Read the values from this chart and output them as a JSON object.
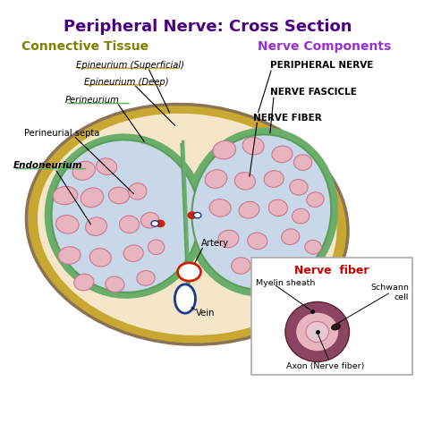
{
  "title": "Peripheral Nerve: Cross Section",
  "title_color": "#4B0082",
  "title_fontsize": 13,
  "subtitle_left": "Connective Tissue",
  "subtitle_left_color": "#808000",
  "subtitle_right": "Nerve Components",
  "subtitle_right_color": "#9932CC",
  "subtitle_fontsize": 10,
  "bg_color": "#FFFFFF",
  "outer_nerve_color": "#F5E6C8",
  "outer_nerve_edge": "#C8A832",
  "outer_nerve_edge2": "#8B7355",
  "fascicle_fill": "#C8D8E8",
  "fascicle_edge_outer": "#6BAD6B",
  "fascicle_edge_inner": "#5A9E5A",
  "nerve_fiber_fill": "#E8B4C0",
  "nerve_fiber_edge": "#C87890",
  "label_color": "#000000",
  "label_fontsize": 7.5,
  "inset_bg": "#FFFFFF",
  "inset_border": "#AAAAAA",
  "inset_title_color": "#CC0000",
  "inset_outer_fill": "#8B4560",
  "inset_myelin_fill": "#E8B4C0",
  "inset_axon_fill": "#E8C8D0",
  "inset_schwann_fill": "#2A1A1A",
  "left_fibers": [
    [
      2.0,
      6.0,
      0.28,
      0.22,
      20
    ],
    [
      2.55,
      6.1,
      0.25,
      0.2,
      -10
    ],
    [
      1.55,
      5.4,
      0.3,
      0.22,
      5
    ],
    [
      2.2,
      5.35,
      0.28,
      0.23,
      15
    ],
    [
      2.85,
      5.4,
      0.25,
      0.2,
      -5
    ],
    [
      3.3,
      5.5,
      0.22,
      0.2,
      10
    ],
    [
      1.6,
      4.7,
      0.28,
      0.22,
      -8
    ],
    [
      2.3,
      4.65,
      0.26,
      0.22,
      12
    ],
    [
      3.1,
      4.7,
      0.24,
      0.21,
      -3
    ],
    [
      3.6,
      4.8,
      0.22,
      0.19,
      8
    ],
    [
      1.65,
      3.95,
      0.27,
      0.21,
      5
    ],
    [
      2.4,
      3.9,
      0.26,
      0.22,
      -10
    ],
    [
      3.2,
      4.0,
      0.24,
      0.2,
      7
    ],
    [
      3.75,
      4.15,
      0.2,
      0.18,
      -5
    ],
    [
      2.0,
      3.3,
      0.24,
      0.2,
      10
    ],
    [
      2.75,
      3.25,
      0.23,
      0.19,
      -8
    ],
    [
      3.5,
      3.4,
      0.22,
      0.18,
      5
    ]
  ],
  "right_fibers": [
    [
      5.4,
      6.5,
      0.28,
      0.22,
      10
    ],
    [
      6.1,
      6.6,
      0.26,
      0.21,
      -8
    ],
    [
      6.8,
      6.4,
      0.25,
      0.2,
      5
    ],
    [
      7.3,
      6.2,
      0.22,
      0.19,
      -3
    ],
    [
      5.2,
      5.8,
      0.27,
      0.22,
      15
    ],
    [
      5.9,
      5.75,
      0.25,
      0.21,
      -10
    ],
    [
      6.6,
      5.8,
      0.24,
      0.2,
      8
    ],
    [
      7.2,
      5.6,
      0.22,
      0.19,
      -5
    ],
    [
      7.6,
      5.3,
      0.21,
      0.18,
      10
    ],
    [
      5.3,
      5.1,
      0.26,
      0.21,
      -5
    ],
    [
      6.0,
      5.05,
      0.25,
      0.2,
      12
    ],
    [
      6.7,
      5.1,
      0.23,
      0.2,
      -8
    ],
    [
      7.25,
      4.9,
      0.21,
      0.18,
      5
    ],
    [
      5.5,
      4.35,
      0.25,
      0.21,
      8
    ],
    [
      6.2,
      4.3,
      0.24,
      0.2,
      -6
    ],
    [
      7.0,
      4.4,
      0.22,
      0.19,
      10
    ],
    [
      7.55,
      4.15,
      0.2,
      0.17,
      -4
    ],
    [
      5.8,
      3.7,
      0.23,
      0.2,
      5
    ],
    [
      6.6,
      3.65,
      0.22,
      0.19,
      -7
    ]
  ]
}
